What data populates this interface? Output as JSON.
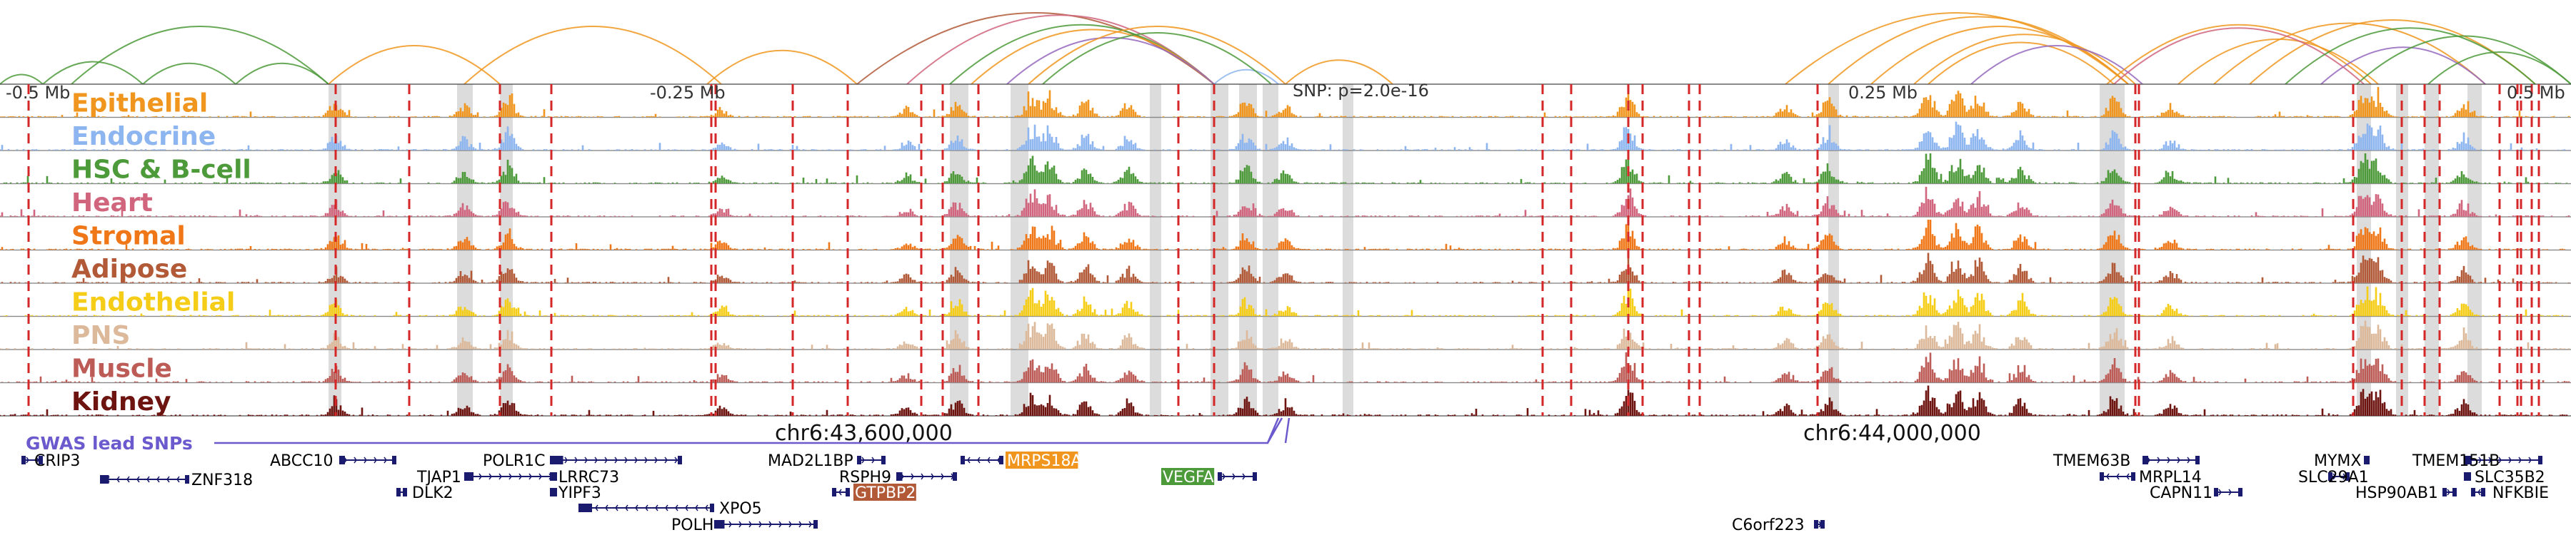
{
  "region": {
    "positions": [
      "-0.5 Mb",
      "-0.25 Mb",
      "0.25 Mb",
      "0.5 Mb"
    ],
    "snp_label": "SNP: p=2.0e-16",
    "coordinates": [
      "chr6:43,600,000",
      "chr6:44,000,000"
    ]
  },
  "tracks": [
    {
      "name": "Epithelial",
      "color": "#f0961e"
    },
    {
      "name": "Endocrine",
      "color": "#8db5ef"
    },
    {
      "name": "HSC & B-cell",
      "color": "#4c9a3a"
    },
    {
      "name": "Heart",
      "color": "#d0657d"
    },
    {
      "name": "Stromal",
      "color": "#f07718"
    },
    {
      "name": "Adipose",
      "color": "#b25a38"
    },
    {
      "name": "Endothelial",
      "color": "#f5cd17"
    },
    {
      "name": "PNS",
      "color": "#dcb99a"
    },
    {
      "name": "Muscle",
      "color": "#bd5c57"
    },
    {
      "name": "Kidney",
      "color": "#6e1410"
    }
  ],
  "gwas_label": "GWAS lead SNPs",
  "genes": [
    {
      "name": "CRIP3",
      "color": "#000000"
    },
    {
      "name": "ZNF318",
      "color": "#000000"
    },
    {
      "name": "ABCC10",
      "color": "#000000"
    },
    {
      "name": "TJAP1",
      "color": "#000000"
    },
    {
      "name": "DLK2",
      "color": "#000000"
    },
    {
      "name": "POLR1C",
      "color": "#000000"
    },
    {
      "name": "LRRC73",
      "color": "#000000"
    },
    {
      "name": "YIPF3",
      "color": "#000000"
    },
    {
      "name": "XPO5",
      "color": "#000000"
    },
    {
      "name": "POLH",
      "color": "#000000"
    },
    {
      "name": "MAD2L1BP",
      "color": "#000000"
    },
    {
      "name": "RSPH9",
      "color": "#000000"
    },
    {
      "name": "GTPBP2",
      "color": "#b25a38"
    },
    {
      "name": "MRPS18A",
      "color": "#f0961e"
    },
    {
      "name": "VEGFA",
      "color": "#4c9a3a"
    },
    {
      "name": "C6orf223",
      "color": "#000000"
    },
    {
      "name": "TMEM63B",
      "color": "#000000"
    },
    {
      "name": "MRPL14",
      "color": "#000000"
    },
    {
      "name": "CAPN11",
      "color": "#000000"
    },
    {
      "name": "MYMX",
      "color": "#000000"
    },
    {
      "name": "SLC29A1",
      "color": "#000000"
    },
    {
      "name": "HSP90AB1",
      "color": "#000000"
    },
    {
      "name": "TMEM151B",
      "color": "#000000"
    },
    {
      "name": "SLC35B2",
      "color": "#000000"
    },
    {
      "name": "NFKBIE",
      "color": "#000000"
    }
  ],
  "colors": {
    "ld_line": "#d62728",
    "highlight": "#dcdcdc",
    "gene_body": "#1a1a6e",
    "gwas": "#6a5acd"
  }
}
